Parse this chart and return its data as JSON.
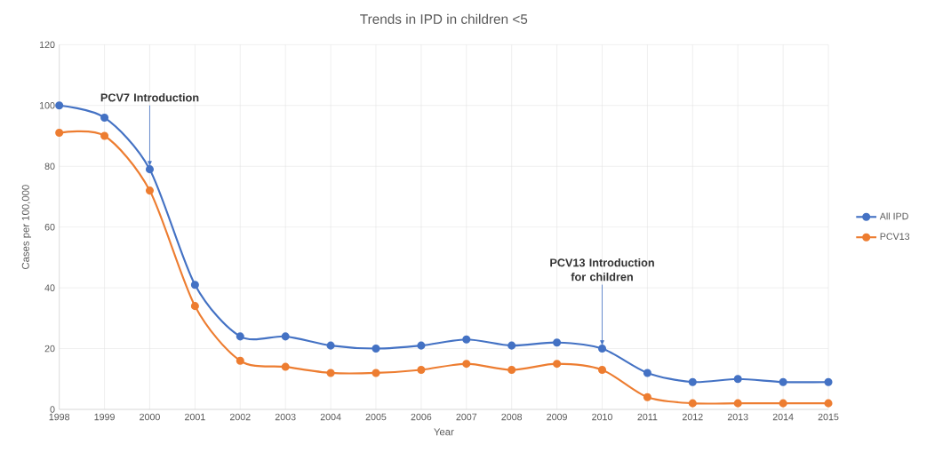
{
  "chart_data": {
    "type": "line",
    "title": "Trends in IPD in children <5",
    "xlabel": "Year",
    "ylabel": "Cases per 100,000",
    "x": [
      1998,
      1999,
      2000,
      2001,
      2002,
      2003,
      2004,
      2005,
      2006,
      2007,
      2008,
      2009,
      2010,
      2011,
      2012,
      2013,
      2014,
      2015
    ],
    "series": [
      {
        "name": "All IPD",
        "color": "#4472c4",
        "values": [
          100,
          96,
          79,
          41,
          24,
          24,
          21,
          20,
          21,
          23,
          21,
          22,
          20,
          12,
          9,
          10,
          9,
          9
        ]
      },
      {
        "name": "PCV13",
        "color": "#ed7d31",
        "values": [
          91,
          90,
          72,
          34,
          16,
          14,
          12,
          12,
          13,
          15,
          13,
          15,
          13,
          4,
          2,
          2,
          2,
          2
        ]
      }
    ],
    "xlim": [
      1998,
      2015
    ],
    "xticks": [
      1998,
      1999,
      2000,
      2001,
      2002,
      2003,
      2004,
      2005,
      2006,
      2007,
      2008,
      2009,
      2010,
      2011,
      2012,
      2013,
      2014,
      2015
    ],
    "ylim": [
      0,
      120
    ],
    "yticks": [
      0,
      20,
      40,
      60,
      80,
      100,
      120
    ],
    "grid": true,
    "legend": "right",
    "marker": "circle",
    "line_style": "solid",
    "annotations": [
      {
        "text": "PCV7 Introduction",
        "x": 2000,
        "y": 79
      },
      {
        "text": "PCV13 Introduction for children",
        "x": 2010,
        "y": 20
      }
    ]
  }
}
